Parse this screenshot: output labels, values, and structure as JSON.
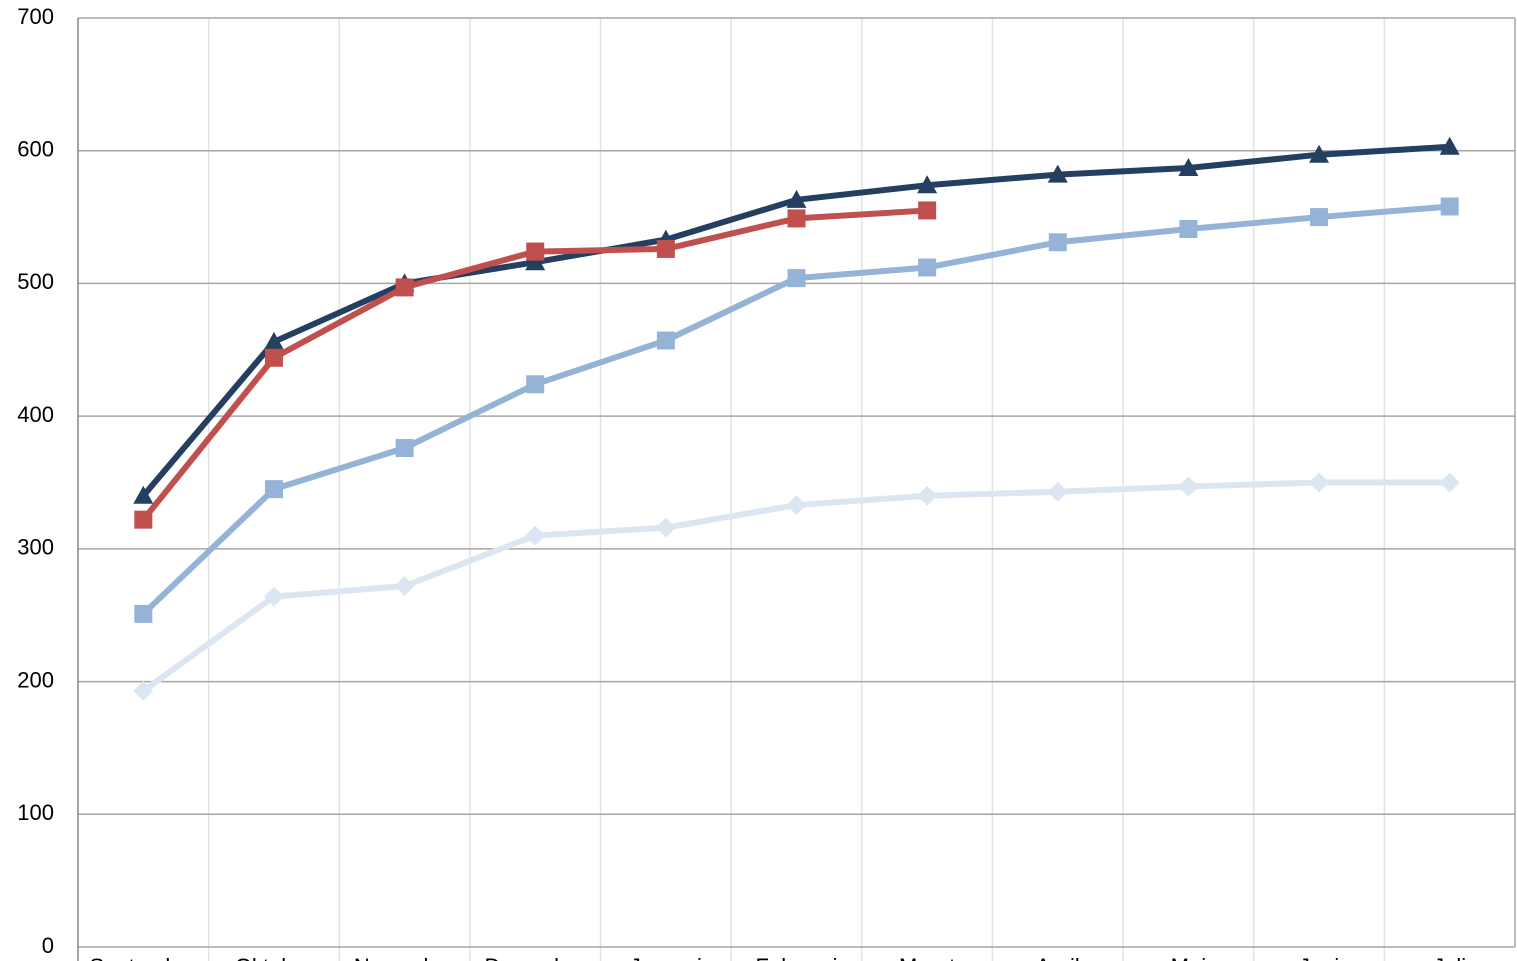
{
  "chart_data": {
    "type": "line",
    "categories": [
      "September",
      "Oktober",
      "November",
      "December",
      "Januari",
      "Februari",
      "Maart",
      "April",
      "Mei",
      "Juni",
      "Juli"
    ],
    "series": [
      {
        "color": "#dce6f2",
        "marker": "diamond",
        "values": [
          193,
          264,
          272,
          310,
          316,
          333,
          340,
          343,
          347,
          350,
          350
        ]
      },
      {
        "color": "#95b3d7",
        "marker": "square",
        "values": [
          251,
          345,
          376,
          424,
          457,
          504,
          512,
          531,
          541,
          550,
          558
        ]
      },
      {
        "color": "#243f60",
        "marker": "triangle",
        "values": [
          340,
          456,
          500,
          516,
          533,
          563,
          574,
          582,
          587,
          597,
          603
        ]
      },
      {
        "color": "#c0504d",
        "marker": "square",
        "values": [
          322,
          444,
          497,
          524,
          526,
          549,
          555,
          null,
          null,
          null,
          null
        ]
      }
    ],
    "ylim": [
      0,
      700
    ],
    "yticks": [
      0,
      100,
      200,
      300,
      400,
      500,
      600,
      700
    ],
    "grid": true
  }
}
